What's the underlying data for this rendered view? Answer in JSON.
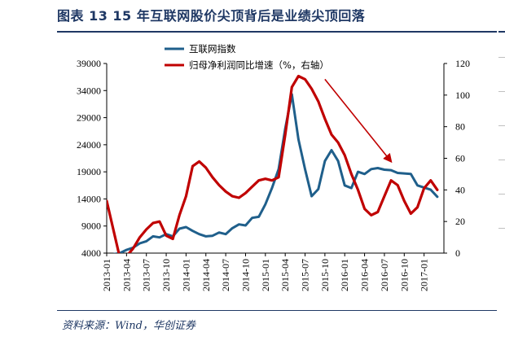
{
  "header": {
    "figure_title": "图表 13   15 年互联网股价尖顶背后是业绩尖顶回落"
  },
  "footer": {
    "source": "资料来源：Wind，华创证券"
  },
  "colors": {
    "index_line": "#1f5f8b",
    "growth_line": "#c00000",
    "arrow": "#c00000",
    "accent": "#1f3864"
  },
  "chart_data": {
    "type": "line",
    "title": "",
    "xlabel": "",
    "ylabel": "",
    "x_tick_labels": [
      "2013-01",
      "2013-04",
      "2013-07",
      "2013-10",
      "2014-01",
      "2014-04",
      "2014-07",
      "2014-10",
      "2015-01",
      "2015-04",
      "2015-07",
      "2015-10",
      "2016-01",
      "2016-04",
      "2016-07",
      "2016-10",
      "2017-01"
    ],
    "y_left": {
      "ylim": [
        4000,
        39000
      ],
      "ticks": [
        4000,
        9000,
        14000,
        19000,
        24000,
        29000,
        34000,
        39000
      ]
    },
    "y_right": {
      "ylim": [
        0,
        120
      ],
      "ticks": [
        0,
        20,
        40,
        60,
        80,
        100,
        120
      ]
    },
    "legend": {
      "placement": "top-left"
    },
    "series": [
      {
        "name": "互联网指数",
        "axis": "left",
        "color": "#1f5f8b",
        "points": [
          [
            "2013-01",
            3300
          ],
          [
            "2013-02",
            3800
          ],
          [
            "2013-03",
            4000
          ],
          [
            "2013-04",
            4600
          ],
          [
            "2013-05",
            5000
          ],
          [
            "2013-06",
            5800
          ],
          [
            "2013-07",
            6200
          ],
          [
            "2013-08",
            7100
          ],
          [
            "2013-09",
            6900
          ],
          [
            "2013-10",
            7500
          ],
          [
            "2013-11",
            7100
          ],
          [
            "2013-12",
            8500
          ],
          [
            "2014-01",
            8800
          ],
          [
            "2014-02",
            8100
          ],
          [
            "2014-03",
            7500
          ],
          [
            "2014-04",
            7100
          ],
          [
            "2014-05",
            7200
          ],
          [
            "2014-06",
            7800
          ],
          [
            "2014-07",
            7500
          ],
          [
            "2014-08",
            8600
          ],
          [
            "2014-09",
            9300
          ],
          [
            "2014-10",
            9100
          ],
          [
            "2014-11",
            10500
          ],
          [
            "2014-12",
            10700
          ],
          [
            "2015-01",
            13000
          ],
          [
            "2015-02",
            16000
          ],
          [
            "2015-03",
            19500
          ],
          [
            "2015-04",
            27000
          ],
          [
            "2015-05",
            33300
          ],
          [
            "2015-06",
            25000
          ],
          [
            "2015-07",
            19500
          ],
          [
            "2015-08",
            14500
          ],
          [
            "2015-09",
            15800
          ],
          [
            "2015-10",
            21000
          ],
          [
            "2015-11",
            23000
          ],
          [
            "2015-12",
            21000
          ],
          [
            "2016-01",
            16500
          ],
          [
            "2016-02",
            16000
          ],
          [
            "2016-03",
            19000
          ],
          [
            "2016-04",
            18600
          ],
          [
            "2016-05",
            19500
          ],
          [
            "2016-06",
            19700
          ],
          [
            "2016-07",
            19400
          ],
          [
            "2016-08",
            19300
          ],
          [
            "2016-09",
            18800
          ],
          [
            "2016-10",
            18700
          ],
          [
            "2016-11",
            18600
          ],
          [
            "2016-12",
            16500
          ],
          [
            "2017-01",
            16100
          ],
          [
            "2017-02",
            15700
          ],
          [
            "2017-03",
            14400
          ]
        ]
      },
      {
        "name": "归母净利润同比增速（%，右轴）",
        "axis": "right",
        "color": "#c00000",
        "points": [
          [
            "2013-01",
            33
          ],
          [
            "2013-02",
            15
          ],
          [
            "2013-03",
            -3
          ],
          [
            "2013-04",
            -2
          ],
          [
            "2013-05",
            3
          ],
          [
            "2013-06",
            10
          ],
          [
            "2013-07",
            15
          ],
          [
            "2013-08",
            19
          ],
          [
            "2013-09",
            20
          ],
          [
            "2013-10",
            11
          ],
          [
            "2013-11",
            9
          ],
          [
            "2013-12",
            24
          ],
          [
            "2014-01",
            36
          ],
          [
            "2014-02",
            55
          ],
          [
            "2014-03",
            58
          ],
          [
            "2014-04",
            54
          ],
          [
            "2014-05",
            48
          ],
          [
            "2014-06",
            43
          ],
          [
            "2014-07",
            39
          ],
          [
            "2014-08",
            36
          ],
          [
            "2014-09",
            35
          ],
          [
            "2014-10",
            38
          ],
          [
            "2014-11",
            42
          ],
          [
            "2014-12",
            46
          ],
          [
            "2015-01",
            47
          ],
          [
            "2015-02",
            46
          ],
          [
            "2015-03",
            48
          ],
          [
            "2015-04",
            75
          ],
          [
            "2015-05",
            105
          ],
          [
            "2015-06",
            112
          ],
          [
            "2015-07",
            110
          ],
          [
            "2015-08",
            104
          ],
          [
            "2015-09",
            96
          ],
          [
            "2015-10",
            85
          ],
          [
            "2015-11",
            75
          ],
          [
            "2015-12",
            70
          ],
          [
            "2016-01",
            62
          ],
          [
            "2016-02",
            50
          ],
          [
            "2016-03",
            40
          ],
          [
            "2016-04",
            28
          ],
          [
            "2016-05",
            24
          ],
          [
            "2016-06",
            26
          ],
          [
            "2016-07",
            36
          ],
          [
            "2016-08",
            46
          ],
          [
            "2016-09",
            43
          ],
          [
            "2016-10",
            33
          ],
          [
            "2016-11",
            25
          ],
          [
            "2016-12",
            29
          ],
          [
            "2017-01",
            41
          ],
          [
            "2017-02",
            46
          ],
          [
            "2017-03",
            40
          ]
        ]
      }
    ],
    "annotations": [
      {
        "type": "arrow",
        "from": [
          "2015-10",
          110
        ],
        "to": [
          "2016-08",
          58
        ]
      }
    ]
  }
}
